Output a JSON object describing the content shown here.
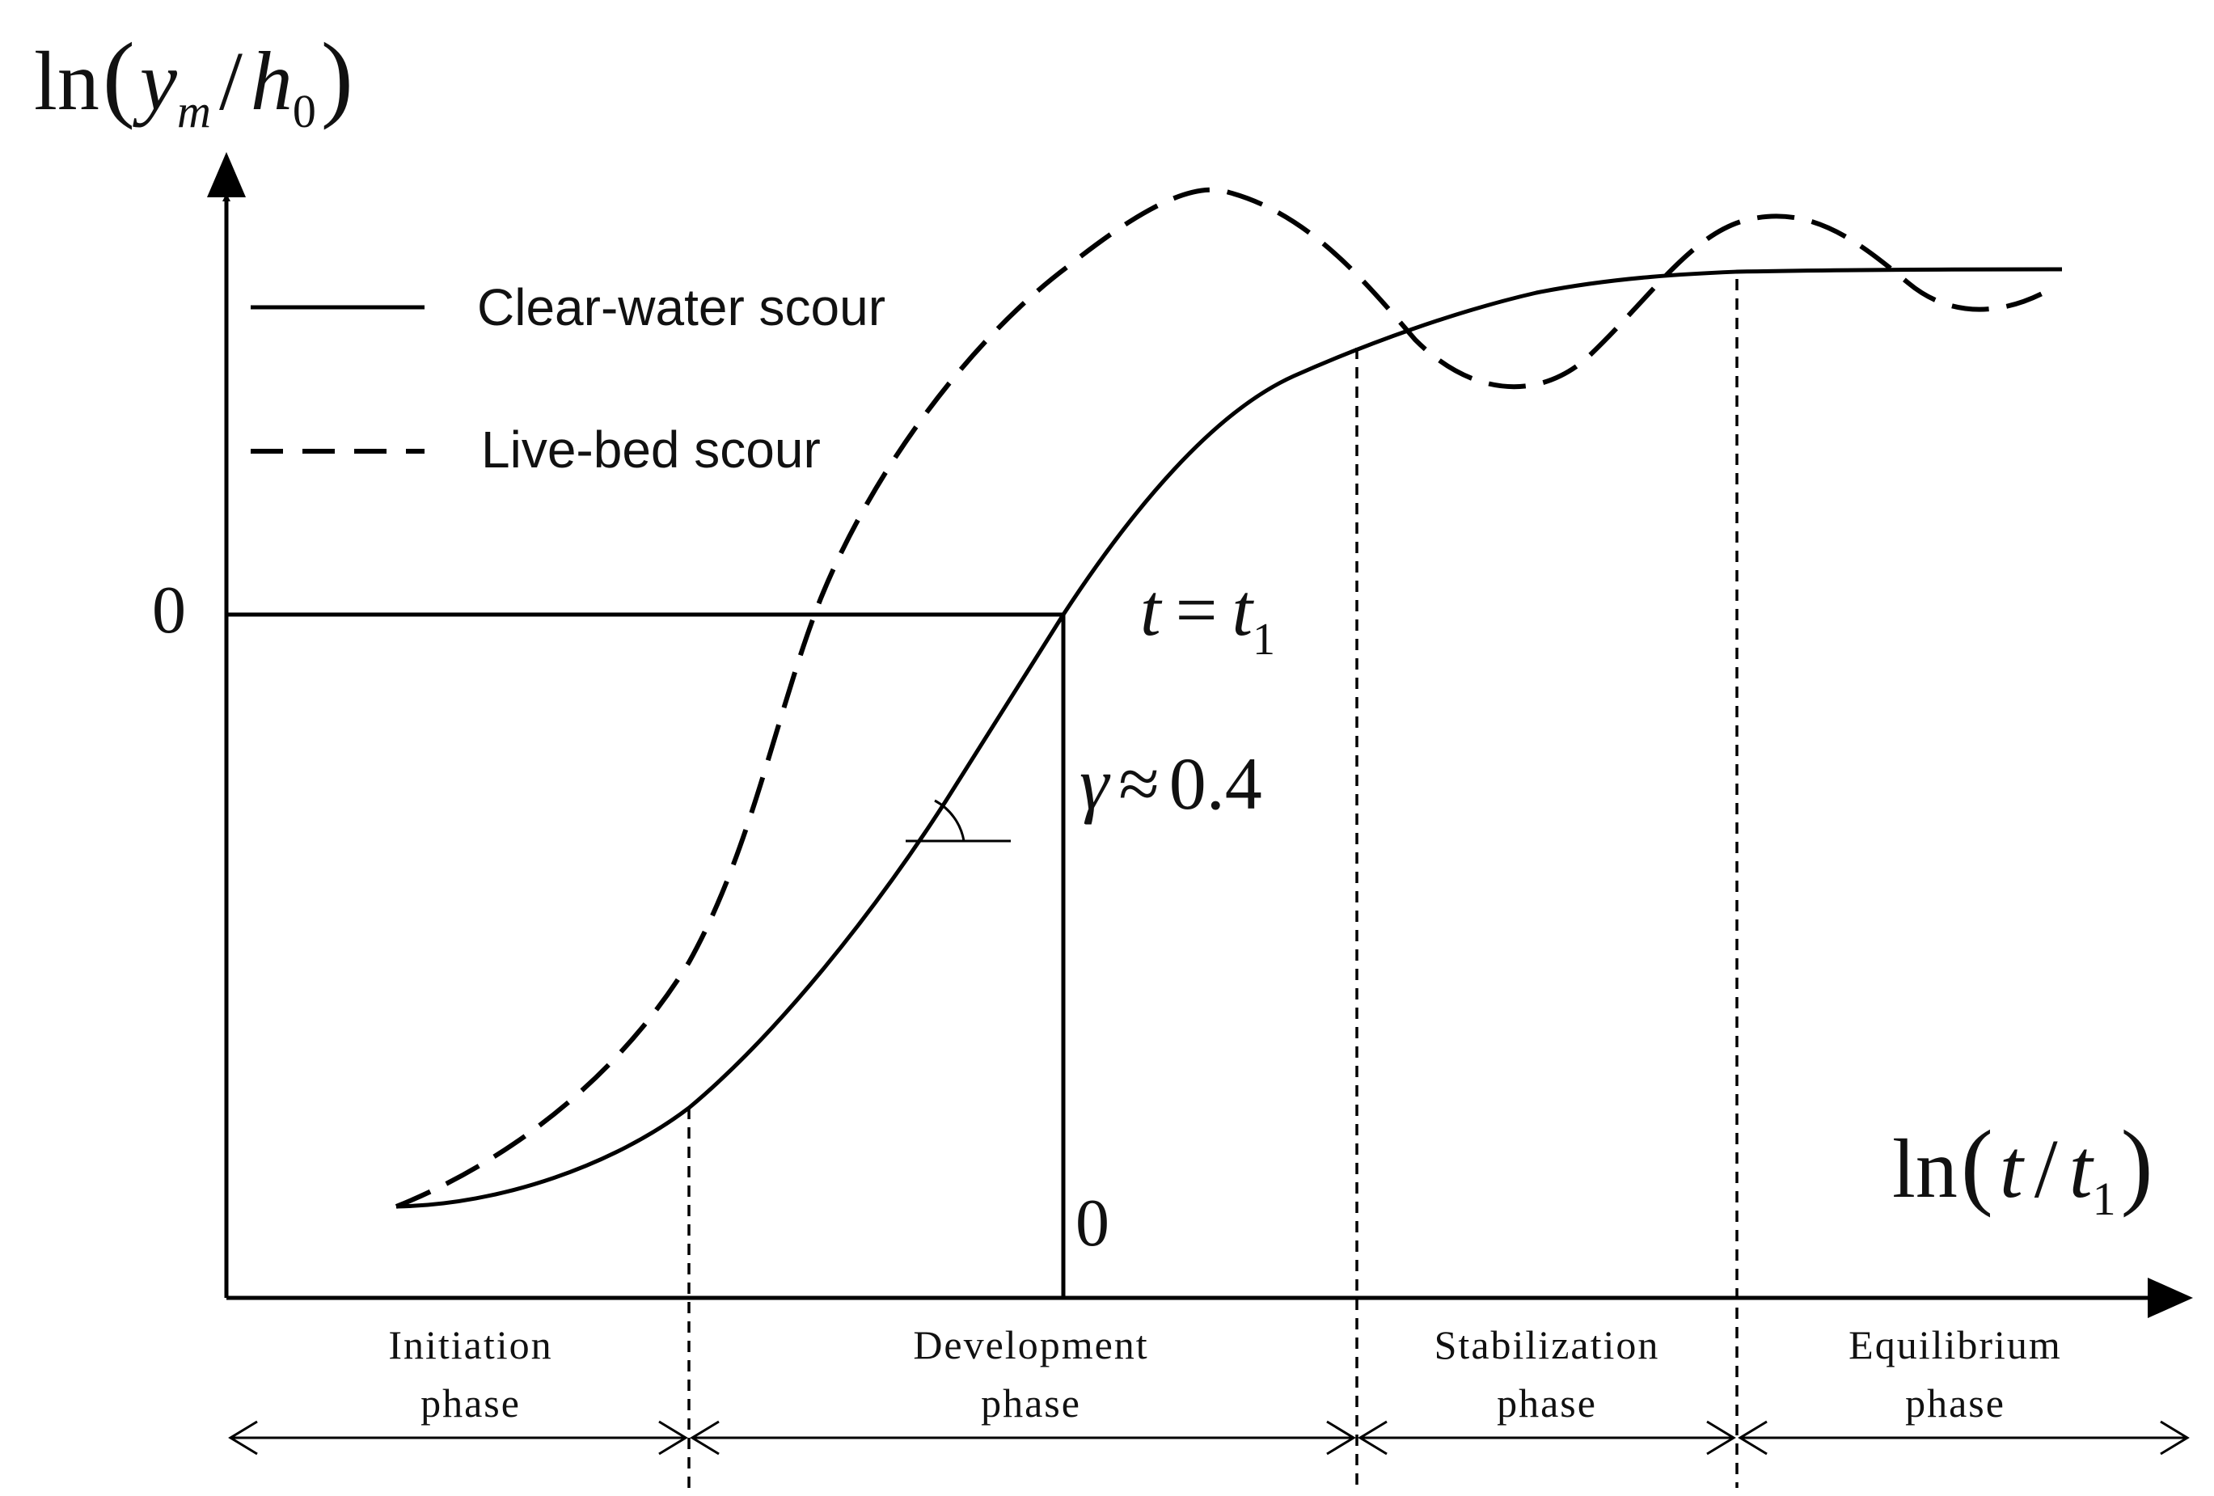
{
  "y_axis": {
    "fn": "ln",
    "num": "y",
    "num_sub": "m",
    "den": "h",
    "den_sub": "0"
  },
  "x_axis": {
    "fn": "ln",
    "num": "t",
    "den": "t",
    "den_sub": "1"
  },
  "legend": [
    {
      "label": "Clear-water scour",
      "style": "solid"
    },
    {
      "label": "Live-bed scour",
      "style": "dashed"
    }
  ],
  "origin_labels": {
    "y_zero": "0",
    "x_zero": "0"
  },
  "annotations": {
    "t_eq": {
      "lhs": "t",
      "op": "=",
      "rhs": "t",
      "rhs_sub": "1"
    },
    "slope": {
      "sym": "γ",
      "op": "≈",
      "value": "0.4"
    }
  },
  "phases": [
    {
      "line1": "Initiation",
      "line2": "phase"
    },
    {
      "line1": "Development",
      "line2": "phase"
    },
    {
      "line1": "Stabilization",
      "line2": "phase"
    },
    {
      "line1": "Equilibrium",
      "line2": "phase"
    }
  ]
}
